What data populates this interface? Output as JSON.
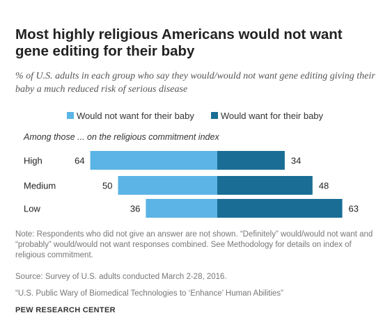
{
  "title": "Most highly religious Americans would not want gene editing for their baby",
  "subtitle": "% of U.S. adults in each group who say they would/would not want gene editing giving their baby a much reduced risk of serious disease",
  "section_label": "Among those ... on the religious commitment index",
  "notes": "Note: Respondents who did not give an answer are not shown. “Definitely” would/would not want and “probably” would/would not want responses combined. See Methodology for details on index of religious commitment.",
  "source": "Source: Survey of U.S. adults conducted March 2-28, 2016.",
  "report": "“U.S. Public Wary of Biomedical Technologies to ‘Enhance’ Human Abilities”",
  "brand": "PEW RESEARCH CENTER",
  "colors": {
    "would_not": "#5BB4E5",
    "would": "#1A6E95"
  },
  "chart_data": {
    "type": "bar",
    "orientation": "horizontal-diverging",
    "categories": [
      "High",
      "Medium",
      "Low"
    ],
    "series": [
      {
        "name": "Would not want for their baby",
        "values": [
          64,
          50,
          36
        ]
      },
      {
        "name": "Would want for their baby",
        "values": [
          34,
          48,
          63
        ]
      }
    ],
    "legend_position": "top"
  }
}
